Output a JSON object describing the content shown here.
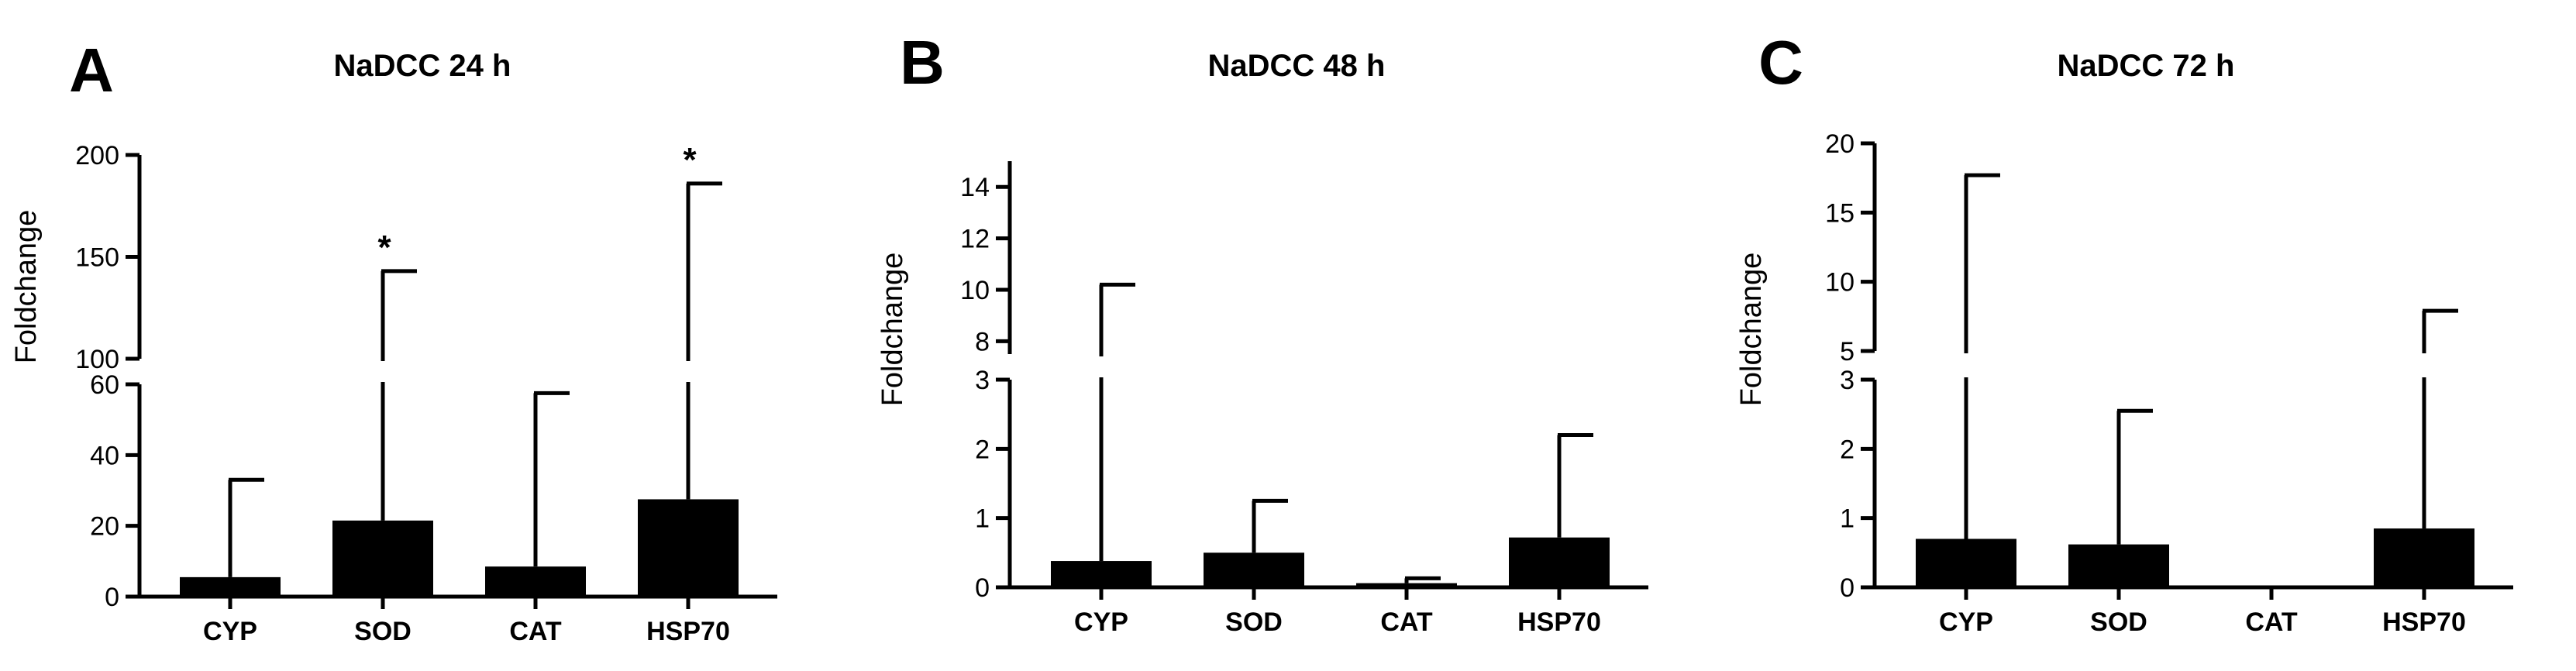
{
  "chart_data": [
    {
      "type": "bar",
      "panel_label": "A",
      "title": "NaDCC 24 h",
      "ylabel": "Foldchange",
      "xlabel": "",
      "categories": [
        "CYP",
        "SOD",
        "CAT",
        "HSP70"
      ],
      "values": [
        5.5,
        21.5,
        8.5,
        27.5
      ],
      "error_upper": [
        33,
        143,
        57.5,
        186
      ],
      "significance": [
        "",
        "*",
        "",
        "*"
      ],
      "axis_break": true,
      "segments": [
        {
          "range": [
            0,
            60
          ],
          "ticks": [
            0,
            20,
            40,
            60
          ],
          "tick_labels": [
            "0",
            "20",
            "40",
            "60"
          ]
        },
        {
          "range": [
            100,
            200
          ],
          "ticks": [
            100,
            150,
            200
          ],
          "tick_labels": [
            "100",
            "150",
            "200"
          ]
        }
      ],
      "bar_color": "#000000",
      "grid": false
    },
    {
      "type": "bar",
      "panel_label": "B",
      "title": "NaDCC 48 h",
      "ylabel": "Foldchange",
      "xlabel": "",
      "categories": [
        "CYP",
        "SOD",
        "CAT",
        "HSP70"
      ],
      "values": [
        0.38,
        0.5,
        0.06,
        0.72
      ],
      "error_upper": [
        10.2,
        1.25,
        0.13,
        2.2
      ],
      "significance": [
        "",
        "",
        "",
        ""
      ],
      "axis_break": true,
      "segments": [
        {
          "range": [
            0,
            3
          ],
          "ticks": [
            0,
            1,
            2,
            3
          ],
          "tick_labels": [
            "0",
            "1",
            "2",
            "3"
          ]
        },
        {
          "range": [
            7.5,
            15
          ],
          "ticks": [
            8,
            10,
            12,
            14
          ],
          "tick_labels": [
            "8",
            "10",
            "12",
            "14"
          ]
        }
      ],
      "bar_color": "#000000",
      "grid": false
    },
    {
      "type": "bar",
      "panel_label": "C",
      "title": "NaDCC 72 h",
      "ylabel": "Foldchange",
      "xlabel": "",
      "categories": [
        "CYP",
        "SOD",
        "CAT",
        "HSP70"
      ],
      "values": [
        0.7,
        0.62,
        0,
        0.85
      ],
      "error_upper": [
        17.7,
        2.55,
        0,
        7.9
      ],
      "significance": [
        "",
        "",
        "",
        ""
      ],
      "axis_break": true,
      "segments": [
        {
          "range": [
            0,
            3
          ],
          "ticks": [
            0,
            1,
            2,
            3
          ],
          "tick_labels": [
            "0",
            "1",
            "2",
            "3"
          ]
        },
        {
          "range": [
            5,
            20
          ],
          "ticks": [
            5,
            10,
            15,
            20
          ],
          "tick_labels": [
            "5",
            "10",
            "15",
            "20"
          ]
        }
      ],
      "bar_color": "#000000",
      "grid": false
    }
  ]
}
